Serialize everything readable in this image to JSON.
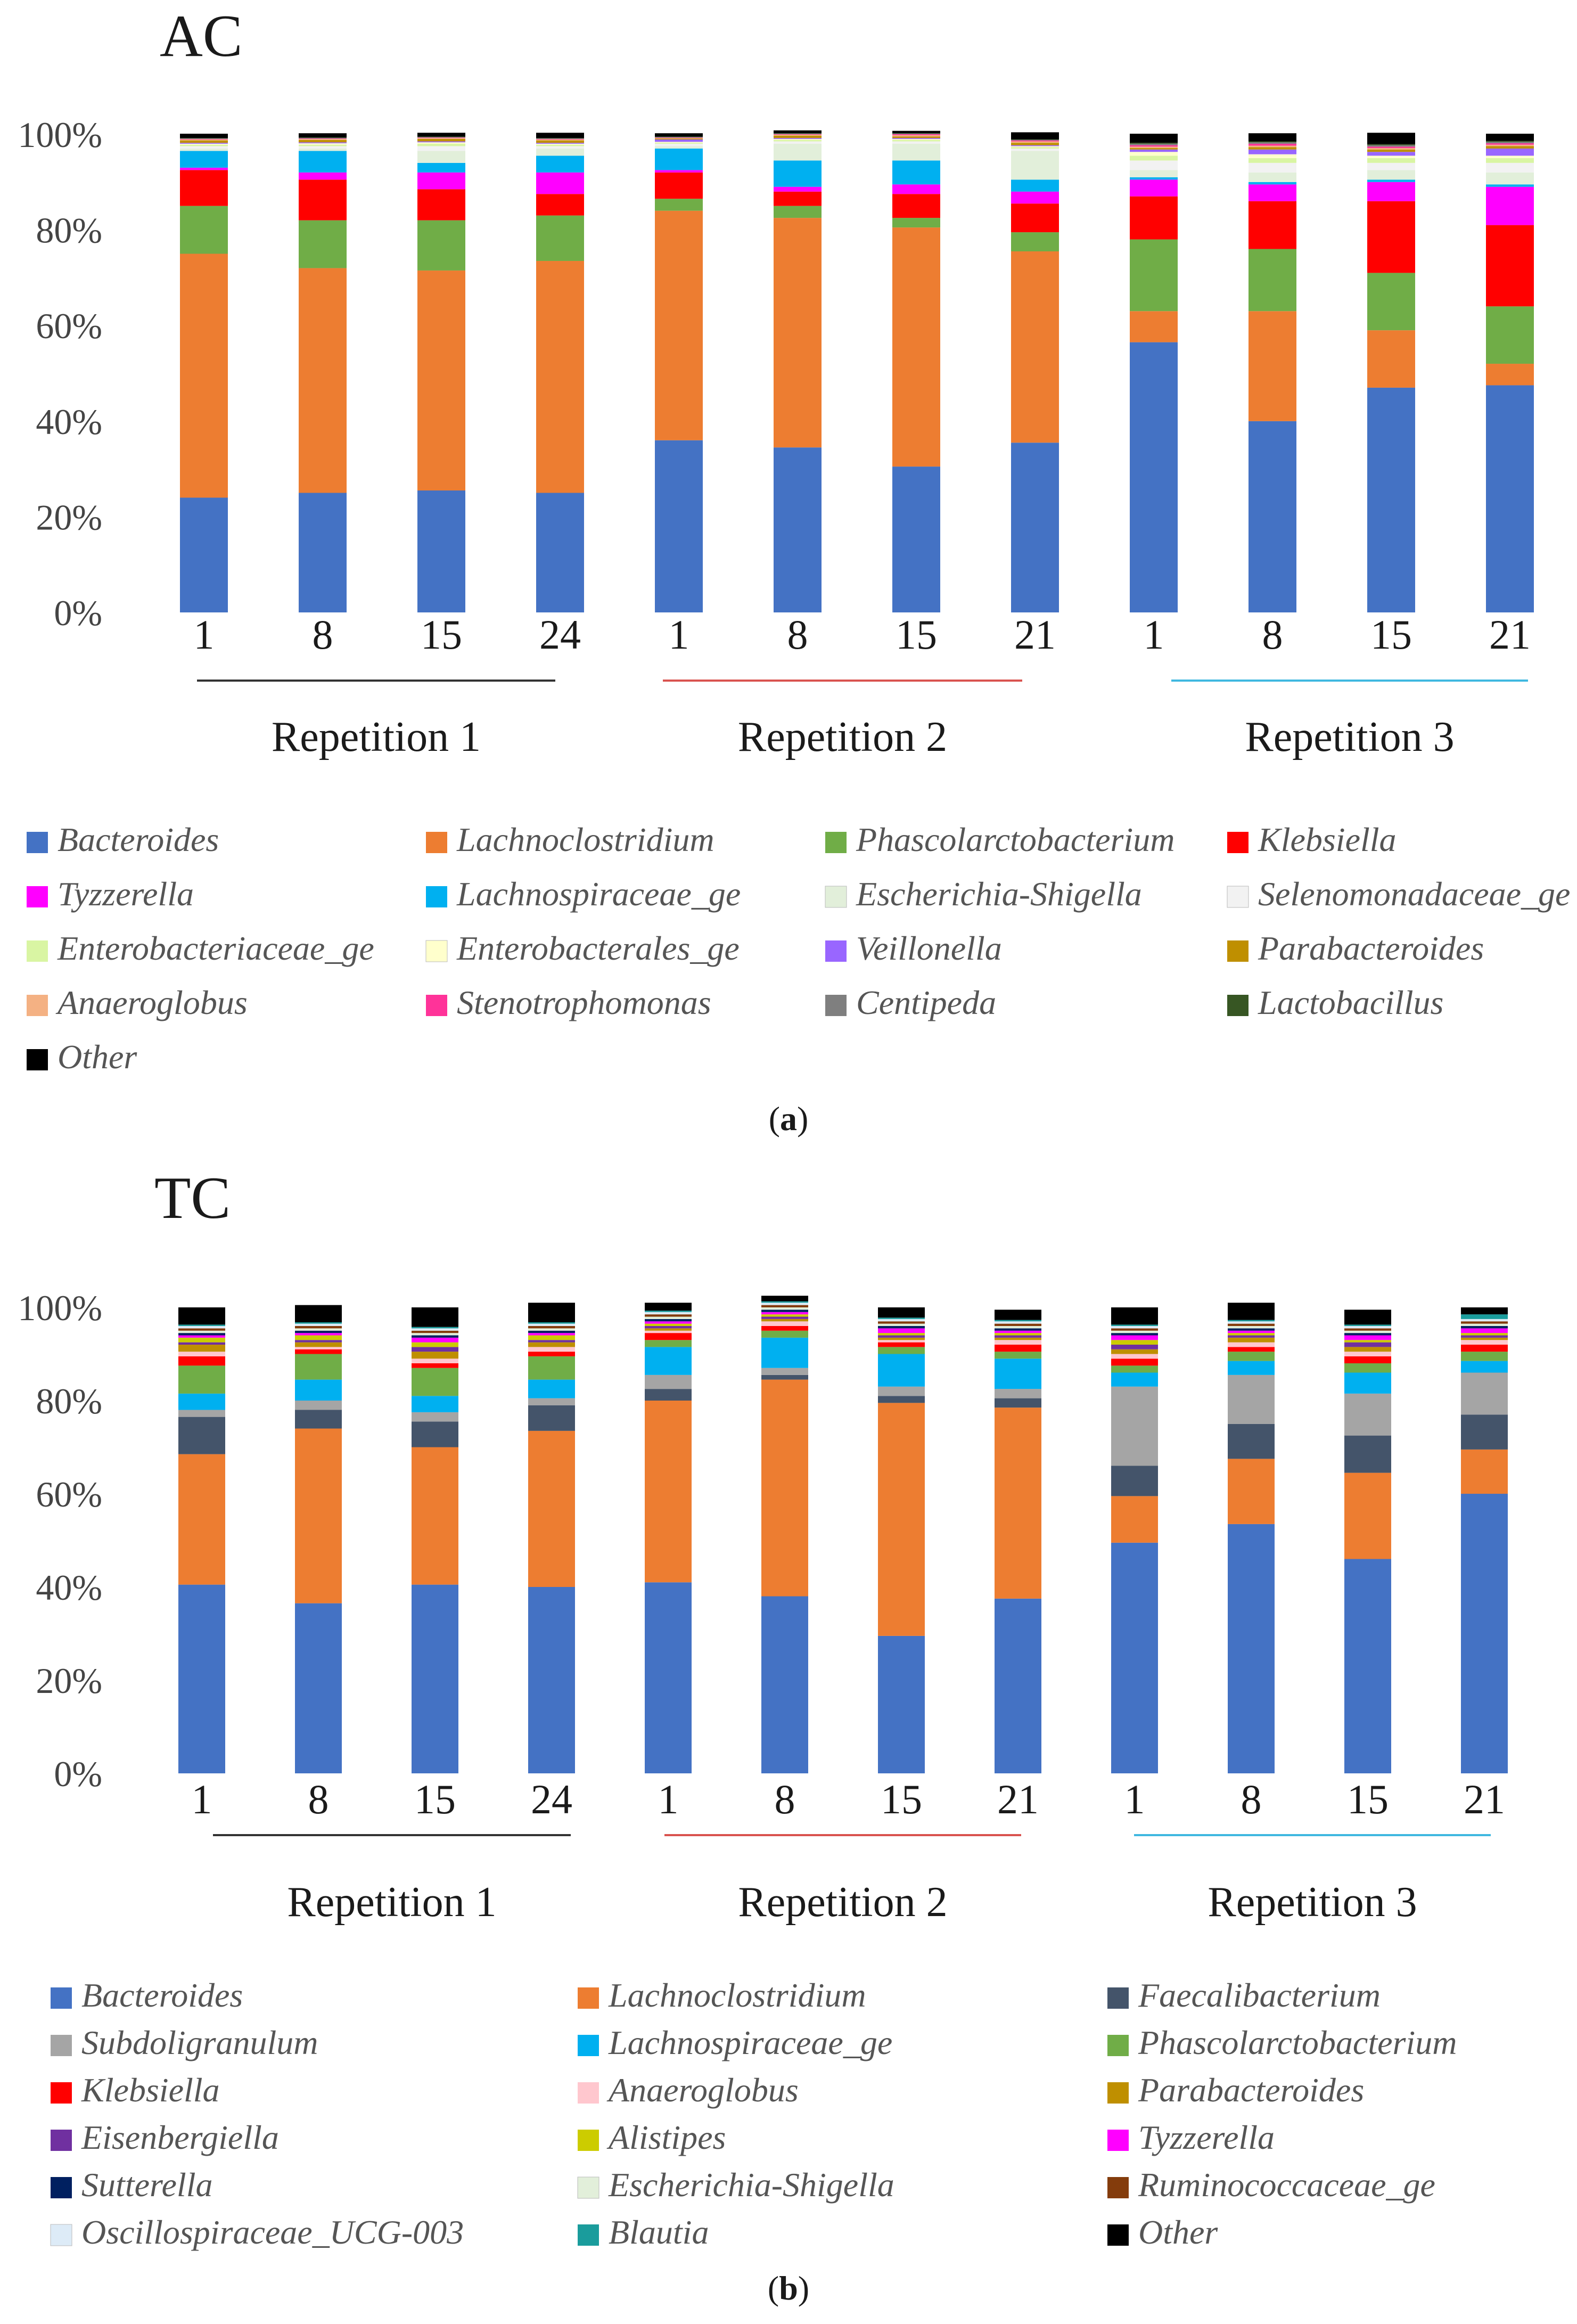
{
  "panels": [
    {
      "chart_data": {
        "type": "bar",
        "stacked": true,
        "title": "AC",
        "caption": "(a)",
        "caption_letter": "a",
        "ylim": [
          0,
          100
        ],
        "yticks": [
          "0%",
          "20%",
          "40%",
          "60%",
          "80%",
          "100%"
        ],
        "categories": [
          "1",
          "8",
          "15",
          "24",
          "1",
          "8",
          "15",
          "21",
          "1",
          "8",
          "15",
          "21"
        ],
        "groups": [
          {
            "label": "Repetition 1",
            "color": "#333333",
            "start": 0,
            "end": 3
          },
          {
            "label": "Repetition 2",
            "color": "#d9534f",
            "start": 4,
            "end": 7
          },
          {
            "label": "Repetition 3",
            "color": "#3fb8e0",
            "start": 8,
            "end": 11
          }
        ],
        "legend_columns": 4,
        "series": [
          {
            "name": "Bacteroides",
            "color": "#4472c4",
            "values": [
              24,
              25,
              25.5,
              25,
              36,
              34.5,
              30.5,
              35.5,
              56.5,
              40,
              47,
              47.5
            ]
          },
          {
            "name": "Lachnoclostridium",
            "color": "#ed7d31",
            "values": [
              51,
              47,
              46,
              48.5,
              48,
              48,
              50,
              40,
              6.5,
              23,
              12,
              4.5
            ]
          },
          {
            "name": "Phascolarctobacterium",
            "color": "#70ad47",
            "values": [
              10,
              10,
              10.5,
              9.5,
              2.5,
              2.5,
              2,
              4,
              15,
              13,
              12,
              12
            ]
          },
          {
            "name": "Klebsiella",
            "color": "#ff0000",
            "values": [
              7.5,
              8.5,
              6.5,
              4.5,
              5.5,
              3,
              5,
              6,
              9,
              10,
              15,
              17
            ]
          },
          {
            "name": "Tyzzerella",
            "color": "#ff00ff",
            "values": [
              0.5,
              1.5,
              3.5,
              4.5,
              0.5,
              1,
              2,
              2.5,
              3.5,
              3.5,
              4,
              8
            ]
          },
          {
            "name": "Lachnospiraceae_ge",
            "color": "#00b0f0",
            "values": [
              3.5,
              4.5,
              2,
              3.5,
              4.5,
              5.5,
              5,
              2.5,
              0.5,
              0.5,
              0.5,
              0.5
            ]
          },
          {
            "name": "Escherichia-Shigella",
            "color": "#e2efda",
            "values": [
              0.5,
              0.5,
              2.5,
              1.5,
              0.5,
              3.5,
              3.5,
              6,
              1.5,
              2,
              2,
              2.5
            ]
          },
          {
            "name": "Selenomonadaceae_ge",
            "color": "#f2f2f2",
            "values": [
              0.5,
              0.5,
              1,
              0.5,
              0.5,
              0.5,
              0.5,
              0.5,
              2,
              2,
              1.5,
              2
            ]
          },
          {
            "name": "Enterobacteriaceae_ge",
            "color": "#d9f5a3",
            "values": [
              0.3,
              0.3,
              0.5,
              0.3,
              0.2,
              0.3,
              0.3,
              0.3,
              1,
              1,
              1,
              1
            ]
          },
          {
            "name": "Enterobacterales_ge",
            "color": "#ffffcc",
            "values": [
              0.2,
              0.3,
              0.3,
              0.2,
              0.2,
              0.2,
              0.2,
              0.2,
              0.8,
              0.8,
              0.5,
              0.5
            ]
          },
          {
            "name": "Veillonella",
            "color": "#9966ff",
            "values": [
              0.2,
              0.2,
              0.2,
              0.2,
              0.5,
              0.2,
              0.2,
              0.2,
              0.5,
              1,
              0.8,
              1.5
            ]
          },
          {
            "name": "Parabacteroides",
            "color": "#bf8f00",
            "values": [
              0.5,
              0.5,
              0.5,
              0.5,
              0.2,
              0.5,
              0.3,
              0.5,
              0.3,
              0.5,
              0.5,
              0.5
            ]
          },
          {
            "name": "Anaeroglobus",
            "color": "#f4b183",
            "values": [
              0.2,
              0.2,
              0.2,
              0.2,
              0.1,
              0.2,
              0.3,
              0.3,
              0.3,
              0.3,
              0.3,
              0.3
            ]
          },
          {
            "name": "Stenotrophomonas",
            "color": "#ff3399",
            "values": [
              0.1,
              0.1,
              0.1,
              0.1,
              0.1,
              0.1,
              0.2,
              0.2,
              0.3,
              0.4,
              0.3,
              0.3
            ]
          },
          {
            "name": "Centipeda",
            "color": "#7f7f7f",
            "values": [
              0.1,
              0.1,
              0.1,
              0.1,
              0.1,
              0.1,
              0.1,
              0.1,
              0.3,
              0.3,
              0.3,
              0.3
            ]
          },
          {
            "name": "Lactobacillus",
            "color": "#375623",
            "values": [
              0.1,
              0.1,
              0.1,
              0.1,
              0.1,
              0.1,
              0.1,
              0.1,
              0.2,
              0.2,
              0.2,
              0.2
            ]
          },
          {
            "name": "Other",
            "color": "#000000",
            "values": [
              0.9,
              0.9,
              0.8,
              1.1,
              0.7,
              0.6,
              0.5,
              1.5,
              1.9,
              1.7,
              2.4,
              1.5
            ]
          }
        ]
      }
    },
    {
      "chart_data": {
        "type": "bar",
        "stacked": true,
        "title": "TC",
        "caption": "(b)",
        "caption_letter": "b",
        "ylim": [
          0,
          100
        ],
        "yticks": [
          "0%",
          "20%",
          "40%",
          "60%",
          "80%",
          "100%"
        ],
        "categories": [
          "1",
          "8",
          "15",
          "24",
          "1",
          "8",
          "15",
          "21",
          "1",
          "8",
          "15",
          "21"
        ],
        "groups": [
          {
            "label": "Repetition 1",
            "color": "#333333",
            "start": 0,
            "end": 3
          },
          {
            "label": "Repetition 2",
            "color": "#d9534f",
            "start": 4,
            "end": 7
          },
          {
            "label": "Repetition 3",
            "color": "#3fb8e0",
            "start": 8,
            "end": 11
          }
        ],
        "legend_columns": 3,
        "series": [
          {
            "name": "Bacteroides",
            "color": "#4472c4",
            "values": [
              40.5,
              36.5,
              40.5,
              40,
              41,
              38,
              29.5,
              37.5,
              49.5,
              53.5,
              46,
              60
            ]
          },
          {
            "name": "Lachnoclostridium",
            "color": "#ed7d31",
            "values": [
              28,
              37.5,
              29.5,
              33.5,
              39,
              46.5,
              50,
              41,
              10,
              14,
              18.5,
              9.5
            ]
          },
          {
            "name": "Faecalibacterium",
            "color": "#44546a",
            "values": [
              8,
              4,
              5.5,
              5.5,
              2.5,
              1,
              1.5,
              2,
              6.5,
              7.5,
              8,
              7.5
            ]
          },
          {
            "name": "Subdoligranulum",
            "color": "#a5a5a5",
            "values": [
              1.5,
              2,
              2,
              1.5,
              3,
              1.5,
              2,
              2,
              17,
              10.5,
              9,
              9
            ]
          },
          {
            "name": "Lachnospiraceae_ge",
            "color": "#00b0f0",
            "values": [
              3.5,
              4.5,
              3.5,
              4,
              6,
              6.5,
              7,
              6.5,
              3,
              3,
              4.5,
              2.5
            ]
          },
          {
            "name": "Phascolarctobacterium",
            "color": "#70ad47",
            "values": [
              6,
              5.5,
              6,
              5,
              1.5,
              1.5,
              1.5,
              1.5,
              1.5,
              2,
              2,
              2
            ]
          },
          {
            "name": "Klebsiella",
            "color": "#ff0000",
            "values": [
              2,
              1,
              1,
              1,
              1.5,
              1,
              1,
              1.5,
              1.5,
              1,
              1.5,
              1.5
            ]
          },
          {
            "name": "Anaeroglobus",
            "color": "#ffc7ce",
            "values": [
              1,
              0.5,
              1,
              1,
              0.5,
              1,
              0.5,
              1,
              1,
              1,
              1,
              1
            ]
          },
          {
            "name": "Parabacteroides",
            "color": "#bf8f00",
            "values": [
              1.5,
              1,
              1.5,
              1,
              0.5,
              0.5,
              0.5,
              0.5,
              1,
              1,
              1,
              0.5
            ]
          },
          {
            "name": "Eisenbergiella",
            "color": "#7030a0",
            "values": [
              0.5,
              0.5,
              1,
              0.5,
              0.5,
              0.5,
              0.5,
              0.5,
              1,
              0.5,
              1,
              0.5
            ]
          },
          {
            "name": "Alistipes",
            "color": "#cccc00",
            "values": [
              1,
              1,
              1,
              1,
              0.5,
              0.5,
              0.5,
              0.5,
              1,
              0.5,
              0.5,
              0.5
            ]
          },
          {
            "name": "Tyzzerella",
            "color": "#ff00ff",
            "values": [
              0.5,
              0.5,
              1,
              0.5,
              0.5,
              0.5,
              1,
              0.5,
              1,
              0.5,
              1,
              1
            ]
          },
          {
            "name": "Sutterella",
            "color": "#002060",
            "values": [
              0.5,
              0.5,
              0.5,
              0.5,
              0.5,
              0.5,
              0.5,
              0.5,
              0.5,
              0.5,
              0.5,
              0.5
            ]
          },
          {
            "name": "Escherichia-Shigella",
            "color": "#e2efda",
            "values": [
              0.5,
              0.5,
              0.5,
              0.5,
              0.5,
              0.5,
              0.5,
              0.5,
              0.5,
              0.5,
              0.5,
              0.5
            ]
          },
          {
            "name": "Ruminococcaceae_ge",
            "color": "#843c0c",
            "values": [
              0.5,
              0.5,
              0.5,
              0.5,
              0.5,
              0.5,
              0.5,
              0.5,
              0.5,
              0.5,
              0.5,
              0.5
            ]
          },
          {
            "name": "Oscillospiraceae_UCG-003",
            "color": "#ddebf7",
            "values": [
              0.5,
              0.5,
              0.5,
              0.5,
              0.5,
              0.5,
              0.5,
              0.5,
              0.5,
              0.5,
              0.5,
              0.5
            ]
          },
          {
            "name": "Blautia",
            "color": "#1a9c9c",
            "values": [
              0.3,
              0.3,
              0.3,
              0.3,
              0.3,
              0.3,
              0.3,
              0.3,
              0.3,
              0.3,
              0.3,
              1
            ]
          },
          {
            "name": "Other",
            "color": "#000000",
            "values": [
              3.7,
              3.7,
              4.2,
              4.2,
              1.7,
              1.2,
              2.2,
              2.2,
              3.7,
              3.7,
              3.2,
              1.5
            ]
          }
        ]
      }
    }
  ]
}
